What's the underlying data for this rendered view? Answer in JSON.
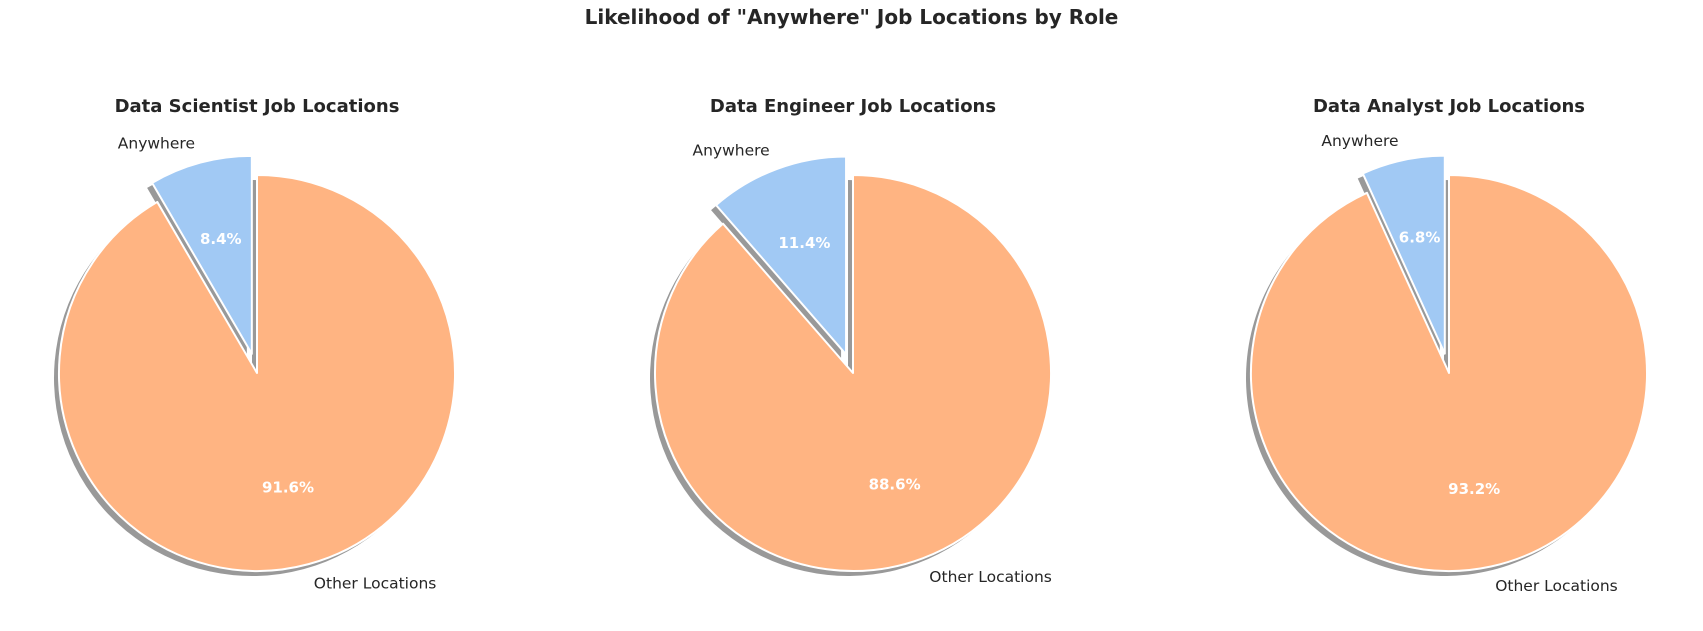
{
  "chart_data": {
    "title": "Likelihood of \"Anywhere\" Job Locations by Role",
    "type": "pie",
    "colors": {
      "Anywhere": "#a1c9f4",
      "Other Locations": "#ffb482"
    },
    "charts": [
      {
        "title": "Data Scientist Job Locations",
        "slices": [
          {
            "label": "Anywhere",
            "value": 8.4,
            "pct_label": "8.4%"
          },
          {
            "label": "Other Locations",
            "value": 91.6,
            "pct_label": "91.6%"
          }
        ]
      },
      {
        "title": "Data Engineer Job Locations",
        "slices": [
          {
            "label": "Anywhere",
            "value": 11.4,
            "pct_label": "11.4%"
          },
          {
            "label": "Other Locations",
            "value": 88.6,
            "pct_label": "88.6%"
          }
        ]
      },
      {
        "title": "Data Analyst Job Locations",
        "slices": [
          {
            "label": "Anywhere",
            "value": 6.8,
            "pct_label": "6.8%"
          },
          {
            "label": "Other Locations",
            "value": 93.2,
            "pct_label": "93.2%"
          }
        ]
      }
    ]
  }
}
